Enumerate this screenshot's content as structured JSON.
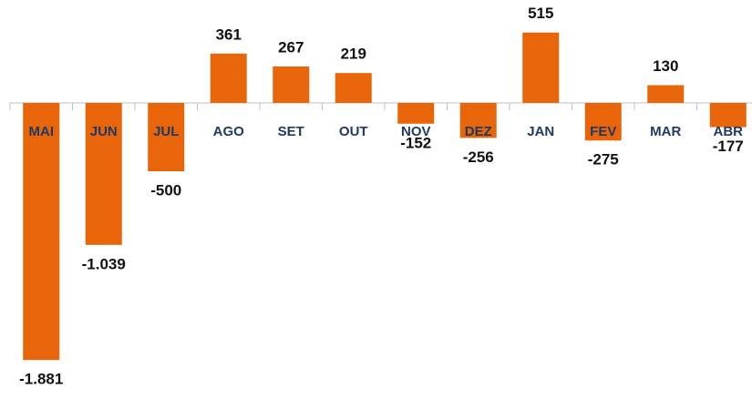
{
  "chart_data": {
    "type": "bar",
    "categories": [
      "MAI",
      "JUN",
      "JUL",
      "AGO",
      "SET",
      "OUT",
      "NOV",
      "DEZ",
      "JAN",
      "FEV",
      "MAR",
      "ABR"
    ],
    "values": [
      -1881,
      -1039,
      -500,
      361,
      267,
      219,
      -152,
      -256,
      515,
      -275,
      130,
      -177
    ],
    "value_labels": [
      "-1.881",
      "-1.039",
      "-500",
      "361",
      "267",
      "219",
      "-152",
      "-256",
      "515",
      "-275",
      "130",
      "-177"
    ],
    "color": "#e8650a",
    "ylim": [
      -2000,
      600
    ]
  }
}
